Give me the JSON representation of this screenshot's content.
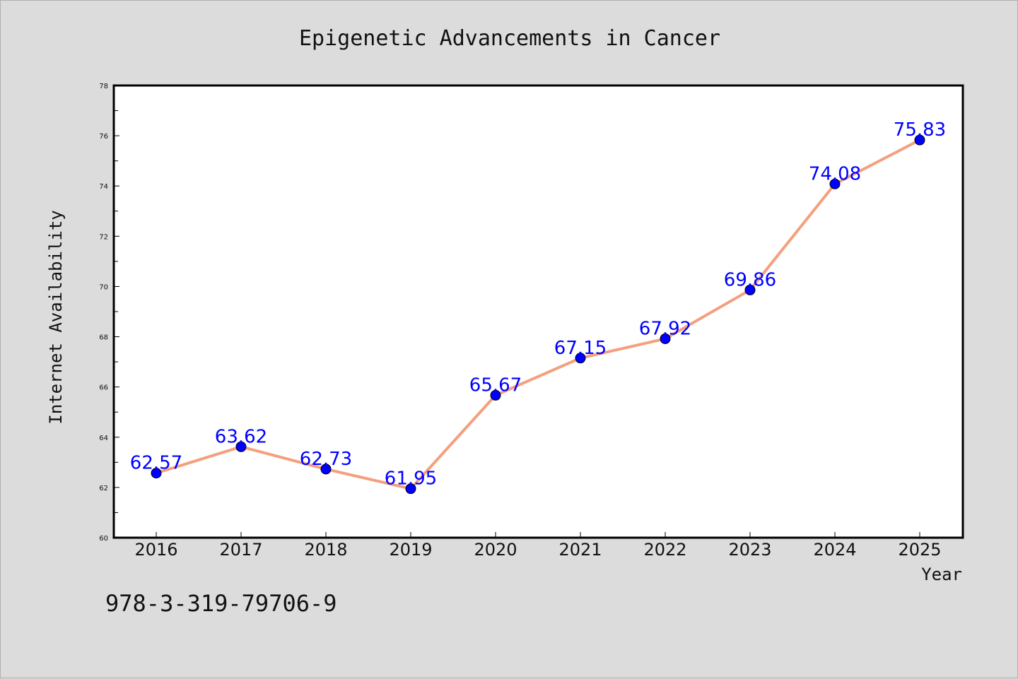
{
  "chart_data": {
    "type": "line",
    "title": "Epigenetic Advancements in Cancer",
    "xlabel": "Year",
    "ylabel": "Internet Availability",
    "x": [
      "2016",
      "2017",
      "2018",
      "2019",
      "2020",
      "2021",
      "2022",
      "2023",
      "2024",
      "2025"
    ],
    "series": [
      {
        "values": [
          62.57,
          63.62,
          62.73,
          61.95,
          65.67,
          67.15,
          67.92,
          69.86,
          74.08,
          75.83
        ],
        "labels": [
          "62.57",
          "63.62",
          "62.73",
          "61.95",
          "65.67",
          "67.15",
          "67.92",
          "69.86",
          "74.08",
          "75.83"
        ],
        "line_color": "#f4a07e",
        "marker_color": "#0000ff"
      }
    ],
    "ylim": [
      60,
      78
    ],
    "yticks": [
      "60",
      "62",
      "64",
      "66",
      "68",
      "70",
      "72",
      "74",
      "76",
      "78"
    ],
    "grid": false,
    "legend": "none",
    "data_label_color": "#0000ff"
  },
  "footer": {
    "isbn": "978-3-319-79706-9"
  },
  "colors": {
    "background": "#dcdcdc",
    "plot_background": "#ffffff"
  }
}
